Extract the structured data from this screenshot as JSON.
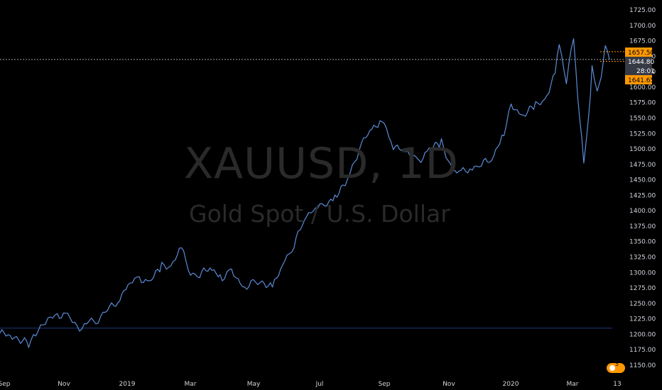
{
  "watermark": {
    "symbol": "XAUUSD, 1D",
    "description": "Gold Spot / U.S. Dollar"
  },
  "badges": {
    "high_label": "1657.50",
    "last_label": "1644.80",
    "countdown": "28:01",
    "low_label": "1641.65",
    "events_count": "5"
  },
  "colors": {
    "background": "#000000",
    "series": "#5b8bd6",
    "axis_text": "#d1d4dc",
    "orange": "#ff9800",
    "last_badge": "#363a45",
    "hline": "#1a3a7a"
  },
  "chart_data": {
    "type": "line",
    "title": "XAUUSD, 1D",
    "subtitle": "Gold Spot / U.S. Dollar",
    "xlabel": "",
    "ylabel": "",
    "ylim": [
      1137,
      1745
    ],
    "y_ticks": [
      1150,
      1175,
      1200,
      1225,
      1250,
      1275,
      1300,
      1325,
      1350,
      1375,
      1400,
      1425,
      1450,
      1475,
      1500,
      1525,
      1550,
      1575,
      1600,
      1625,
      1650,
      1675,
      1700,
      1725
    ],
    "x_ticks": [
      "Sep",
      "Nov",
      "2019",
      "Mar",
      "May",
      "Jul",
      "Sep",
      "Nov",
      "2020",
      "Mar",
      "13"
    ],
    "horizontal_line": 1210,
    "price_lines": {
      "high": 1657.5,
      "last": 1644.8,
      "low": 1641.65
    },
    "series": [
      {
        "name": "XAUUSD",
        "x": [
          "2018-08-27",
          "2018-09-10",
          "2018-09-24",
          "2018-10-01",
          "2018-10-08",
          "2018-10-15",
          "2018-10-22",
          "2018-11-01",
          "2018-11-08",
          "2018-11-15",
          "2018-11-22",
          "2018-12-01",
          "2018-12-10",
          "2018-12-20",
          "2019-01-01",
          "2019-01-10",
          "2019-01-20",
          "2019-02-01",
          "2019-02-10",
          "2019-02-20",
          "2019-03-01",
          "2019-03-10",
          "2019-03-20",
          "2019-04-01",
          "2019-04-10",
          "2019-04-23",
          "2019-05-01",
          "2019-05-10",
          "2019-05-20",
          "2019-06-01",
          "2019-06-10",
          "2019-06-20",
          "2019-07-01",
          "2019-07-10",
          "2019-07-20",
          "2019-08-01",
          "2019-08-06",
          "2019-08-15",
          "2019-08-25",
          "2019-09-04",
          "2019-09-15",
          "2019-09-25",
          "2019-10-01",
          "2019-10-10",
          "2019-10-20",
          "2019-11-01",
          "2019-11-12",
          "2019-11-20",
          "2019-12-01",
          "2019-12-10",
          "2019-12-20",
          "2020-01-01",
          "2020-01-08",
          "2020-01-20",
          "2020-02-01",
          "2020-02-10",
          "2020-02-20",
          "2020-02-24",
          "2020-03-02",
          "2020-03-09",
          "2020-03-13",
          "2020-03-19",
          "2020-03-24",
          "2020-03-27",
          "2020-04-01",
          "2020-04-07",
          "2020-04-09",
          "2020-04-13"
        ],
        "values": [
          1202,
          1196,
          1185,
          1198,
          1220,
          1225,
          1232,
          1230,
          1215,
          1210,
          1220,
          1225,
          1240,
          1255,
          1283,
          1290,
          1285,
          1310,
          1312,
          1338,
          1300,
          1295,
          1310,
          1290,
          1302,
          1276,
          1282,
          1285,
          1275,
          1320,
          1345,
          1385,
          1410,
          1405,
          1425,
          1445,
          1470,
          1510,
          1530,
          1550,
          1500,
          1505,
          1490,
          1480,
          1500,
          1510,
          1465,
          1462,
          1470,
          1475,
          1485,
          1525,
          1570,
          1555,
          1570,
          1580,
          1620,
          1670,
          1610,
          1680,
          1590,
          1475,
          1560,
          1630,
          1590,
          1640,
          1665,
          1645
        ]
      }
    ]
  }
}
